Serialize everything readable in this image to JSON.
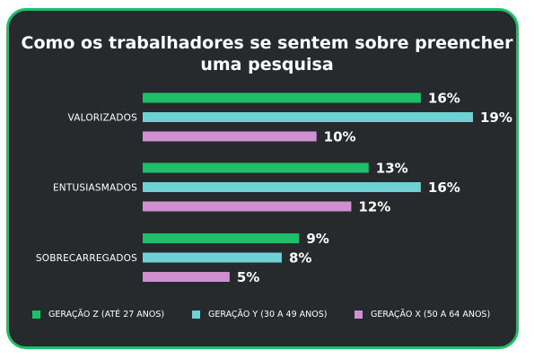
{
  "chart_data": {
    "type": "bar",
    "orientation": "horizontal",
    "title_line1": "Como os trabalhadores se sentem sobre preencher",
    "title_line2": "uma pesquisa",
    "categories": [
      "VALORIZADOS",
      "ENTUSIASMADOS",
      "SOBRECARREGADOS"
    ],
    "series": [
      {
        "name": "GERAÇÃO Z (ATÉ 27 ANOS)",
        "values": [
          16,
          13,
          9
        ],
        "color": "#1fbf6a"
      },
      {
        "name": "GERAÇÃO Y (30 A 49 ANOS)",
        "values": [
          19,
          16,
          8
        ],
        "color": "#6fd0d6"
      },
      {
        "name": "GERAÇÃO X (50 A 64 ANOS)",
        "values": [
          10,
          12,
          5
        ],
        "color": "#d08fd0"
      }
    ],
    "value_suffix": "%",
    "grid": false,
    "legend_position": "bottom",
    "xlim": [
      0,
      19
    ]
  },
  "colors": {
    "background": "#262a2c",
    "border": "#1fbf6a",
    "text": "#ffffff"
  }
}
